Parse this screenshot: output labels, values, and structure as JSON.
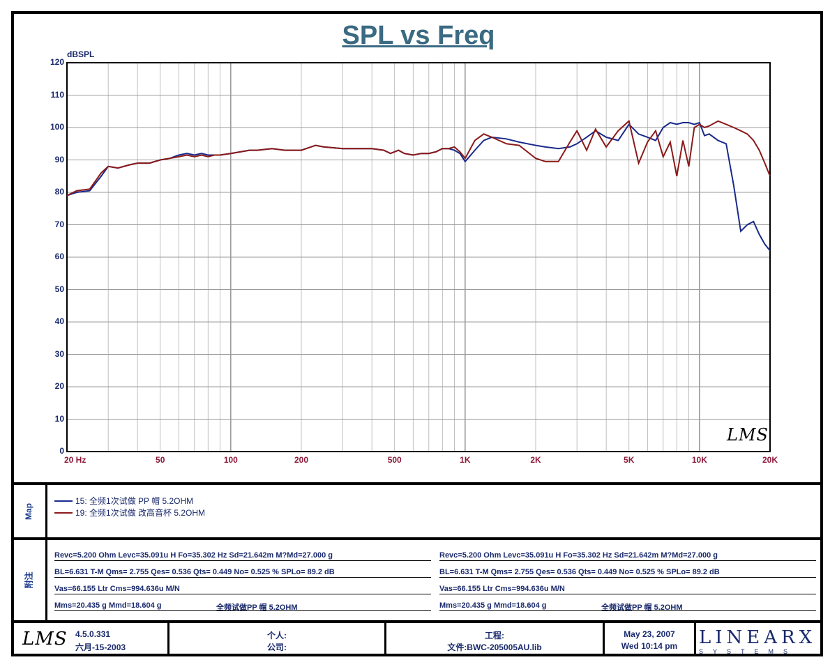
{
  "chart_data": {
    "type": "line",
    "title": "SPL vs Freq",
    "ylabel": "dBSPL",
    "ylim": [
      0,
      120
    ],
    "xlim": [
      20,
      20000
    ],
    "xscale": "log",
    "grid": true,
    "yticks": [
      "0",
      "10",
      "20",
      "30",
      "40",
      "50",
      "60",
      "70",
      "80",
      "90",
      "100",
      "110",
      "120"
    ],
    "xticks": [
      {
        "v": 20,
        "label": "20  Hz"
      },
      {
        "v": 50,
        "label": "50"
      },
      {
        "v": 100,
        "label": "100"
      },
      {
        "v": 200,
        "label": "200"
      },
      {
        "v": 500,
        "label": "500"
      },
      {
        "v": 1000,
        "label": "1K"
      },
      {
        "v": 2000,
        "label": "2K"
      },
      {
        "v": 5000,
        "label": "5K"
      },
      {
        "v": 10000,
        "label": "10K"
      },
      {
        "v": 20000,
        "label": "20K"
      }
    ],
    "series": [
      {
        "name": "15: 全频1次试做   PP 帽   5.2OHM",
        "color": "#1a2a8c",
        "x": [
          20,
          22,
          25,
          28,
          30,
          33,
          37,
          40,
          45,
          50,
          55,
          60,
          65,
          70,
          75,
          80,
          85,
          90,
          100,
          110,
          120,
          130,
          150,
          170,
          200,
          230,
          250,
          300,
          350,
          400,
          450,
          480,
          520,
          550,
          600,
          650,
          700,
          750,
          800,
          850,
          900,
          950,
          1000,
          1100,
          1200,
          1300,
          1500,
          1700,
          2000,
          2200,
          2500,
          2800,
          3000,
          3300,
          3600,
          4000,
          4500,
          5000,
          5500,
          6000,
          6500,
          7000,
          7500,
          8000,
          8500,
          9000,
          9500,
          10000,
          10500,
          11000,
          12000,
          13000,
          14000,
          15000,
          16000,
          17000,
          18000,
          19000,
          20000
        ],
        "y": [
          79,
          80,
          80.5,
          85,
          88,
          87.5,
          88.5,
          89,
          89,
          90,
          90.5,
          91.5,
          92,
          91.5,
          92,
          91.5,
          91.5,
          91.5,
          92,
          92.5,
          93,
          93,
          93.5,
          93,
          93,
          94.5,
          94,
          93.5,
          93.5,
          93.5,
          93,
          92,
          93,
          92,
          91.5,
          92,
          92,
          92.5,
          93.5,
          93.5,
          93,
          92,
          89.5,
          93,
          96,
          97,
          96.5,
          95.5,
          94.5,
          94,
          93.5,
          94,
          95,
          97,
          99,
          97,
          96,
          101,
          98,
          97,
          96,
          100,
          101.5,
          101,
          101.5,
          101.5,
          101,
          101.5,
          97.5,
          98,
          96,
          95,
          82,
          68,
          70,
          71,
          67,
          64,
          62
        ]
      },
      {
        "name": "19: 全频1次试做 改高音杯   5.2OHM",
        "color": "#8b1a1a",
        "x": [
          20,
          22,
          25,
          28,
          30,
          33,
          37,
          40,
          45,
          50,
          55,
          60,
          65,
          70,
          75,
          80,
          85,
          90,
          100,
          110,
          120,
          130,
          150,
          170,
          200,
          230,
          250,
          300,
          350,
          400,
          450,
          480,
          520,
          550,
          600,
          650,
          700,
          750,
          800,
          850,
          900,
          950,
          1000,
          1100,
          1200,
          1300,
          1500,
          1700,
          2000,
          2200,
          2500,
          2800,
          3000,
          3300,
          3600,
          4000,
          4500,
          5000,
          5500,
          6000,
          6500,
          7000,
          7500,
          8000,
          8500,
          9000,
          9500,
          10000,
          10500,
          11000,
          12000,
          13000,
          14000,
          15000,
          16000,
          17000,
          18000,
          19000,
          20000
        ],
        "y": [
          79,
          80.5,
          81,
          86,
          88,
          87.5,
          88.5,
          89,
          89,
          90,
          90.5,
          91,
          91.5,
          91,
          91.5,
          91,
          91.5,
          91.5,
          92,
          92.5,
          93,
          93,
          93.5,
          93,
          93,
          94.5,
          94,
          93.5,
          93.5,
          93.5,
          93,
          92,
          93,
          92,
          91.5,
          92,
          92,
          92.5,
          93.5,
          93.5,
          94,
          92.5,
          90.5,
          96,
          98,
          97,
          95,
          94.5,
          90.5,
          89.5,
          89.5,
          95.5,
          99,
          93,
          99.5,
          94,
          99,
          102,
          89,
          95.5,
          99,
          91,
          95.5,
          85,
          96,
          88,
          100,
          101,
          100,
          100.5,
          102,
          101,
          100,
          99,
          98,
          96,
          93,
          89,
          85
        ]
      }
    ]
  },
  "legend": {
    "label": "Map",
    "items": [
      {
        "text": "15: 全频1次试做   PP 帽   5.2OHM",
        "color": "#1a2a8c"
      },
      {
        "text": "19: 全频1次试做 改高音杯   5.2OHM",
        "color": "#8b1a1a"
      }
    ]
  },
  "params": {
    "label": "附注",
    "left": [
      "Revc=5.200 Ohm  Levc=35.091u H  Fo=35.302 Hz  Sd=21.642m M?Md=27.000 g",
      "BL=6.631 T-M  Qms= 2.755  Qes= 0.536  Qts= 0.449  No= 0.525 %  SPLo= 89.2 dB",
      "Vas=66.155 Ltr  Cms=994.636u M/N",
      "Mms=20.435 g  Mmd=18.604 g"
    ],
    "left_note": "全频试做PP 帽  5.2OHM",
    "right": [
      "Revc=5.200 Ohm  Levc=35.091u H  Fo=35.302 Hz  Sd=21.642m M?Md=27.000 g",
      "BL=6.631 T-M  Qms= 2.755  Qes= 0.536  Qts= 0.449  No= 0.525 %  SPLo= 89.2 dB",
      "Vas=66.155 Ltr  Cms=994.636u M/N",
      "Mms=20.435 g  Mmd=18.604 g"
    ],
    "right_note": "全频试做PP 帽  5.2OHM"
  },
  "footer": {
    "logo": "LMS",
    "version": "4.5.0.331",
    "build_date": "六月-15-2003",
    "person_label": "个人:",
    "company_label": "公司:",
    "project_label": "工程:",
    "file_label": "文件:BWC-205005AU.lib",
    "date": "May 23, 2007",
    "time": "Wed 10:14 pm",
    "brand": "LINEARX",
    "brand_sub": "SYSTEMS"
  },
  "watermark": "LMS"
}
